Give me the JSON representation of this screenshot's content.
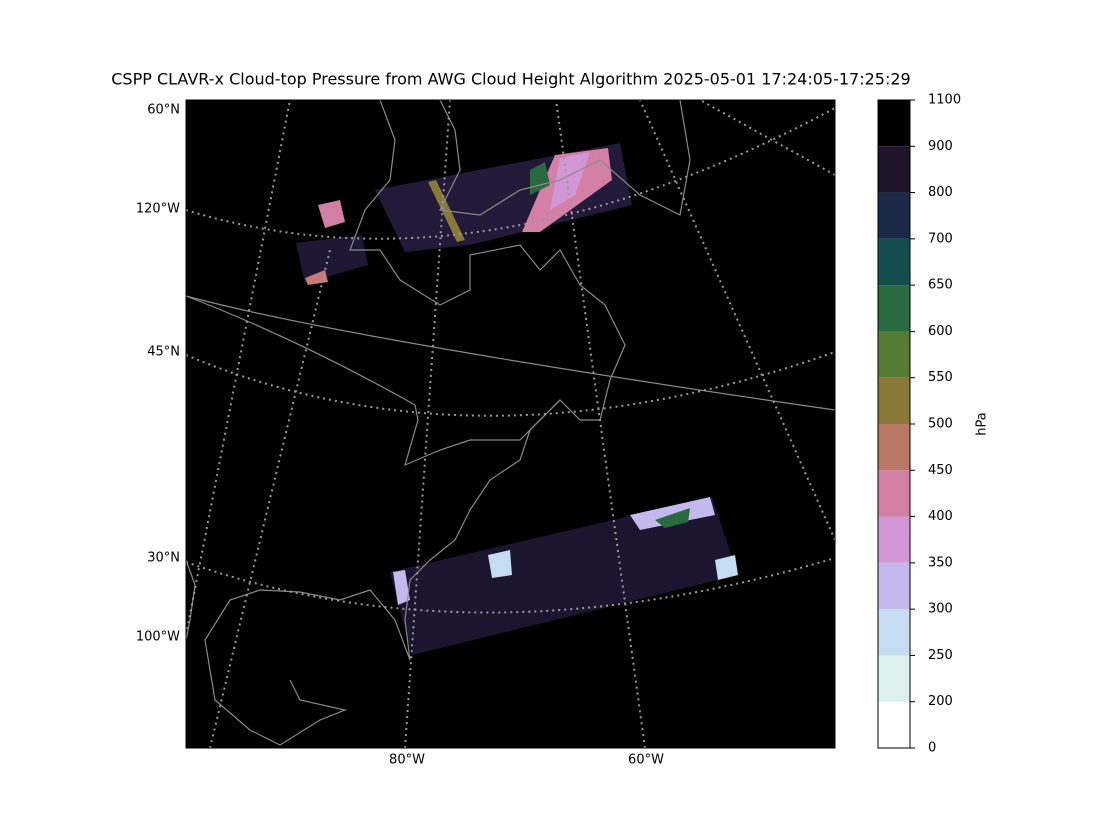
{
  "chart_data": {
    "type": "map",
    "title": "CSPP CLAVR-x Cloud-top Pressure from AWG Cloud Height Algorithm 2025-05-01 17:24:05-17:25:29",
    "map_labels": [
      "60°N",
      "120°W",
      "45°N",
      "30°N",
      "100°W",
      "80°W",
      "60°W"
    ],
    "colorbar": {
      "label": "hPa",
      "ticks": [
        0,
        200,
        250,
        300,
        350,
        400,
        450,
        500,
        550,
        600,
        650,
        700,
        800,
        900,
        1100
      ],
      "colors": [
        "#ffffff",
        "#dcf0ec",
        "#c6dcf0",
        "#c3b9ee",
        "#d397d8",
        "#d17fa4",
        "#b97865",
        "#897a3a",
        "#557c32",
        "#2a6a40",
        "#164d4e",
        "#1c2a4a",
        "#20142b",
        "#000000"
      ]
    }
  }
}
